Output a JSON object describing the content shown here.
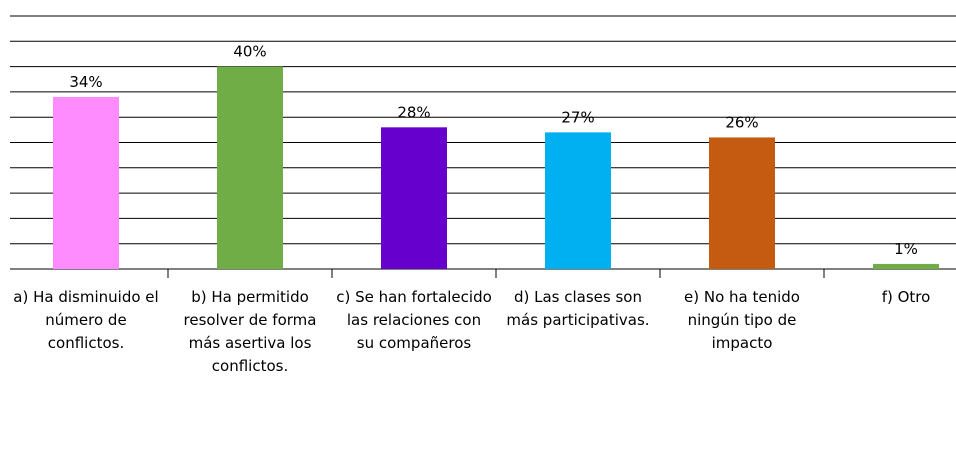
{
  "chart_data": {
    "type": "bar",
    "categories": [
      "a) Ha disminuido el número de conflictos.",
      "b) Ha permitido resolver de forma más asertiva los conflictos.",
      "c) Se han fortalecido las relaciones con su compañeros",
      "d) Las clases son más participativas.",
      "e) No ha tenido ningún tipo de impacto",
      "f) Otro"
    ],
    "values": [
      34,
      40,
      28,
      27,
      26,
      1
    ],
    "value_labels": [
      "34%",
      "40%",
      "28%",
      "27%",
      "26%",
      "1%"
    ],
    "colors": [
      "#ff8cff",
      "#70ad47",
      "#6600cc",
      "#00b0f0",
      "#c55a11",
      "#70ad47"
    ],
    "ylim": [
      0,
      50
    ],
    "yticks": [
      0,
      5,
      10,
      15,
      20,
      25,
      30,
      35,
      40,
      45,
      50
    ],
    "grid": true
  }
}
